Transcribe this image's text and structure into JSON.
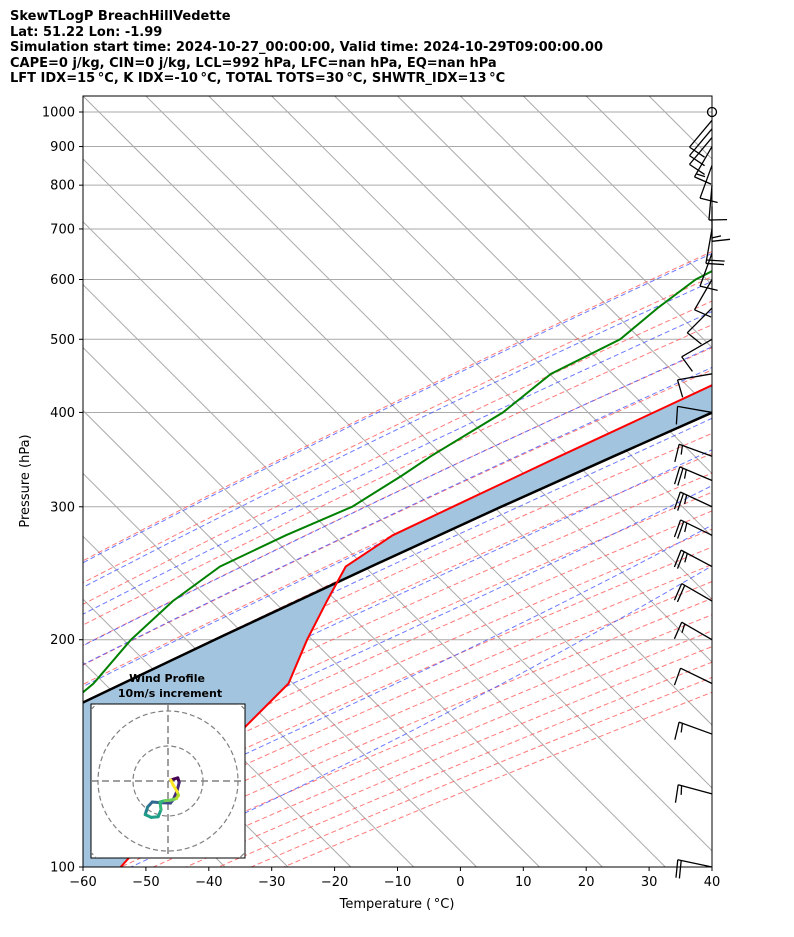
{
  "header": {
    "line1": "SkewTLogP BreachHillVedette",
    "line2": "Lat: 51.22   Lon: -1.99",
    "line3": "Simulation start time: 2024-10-27_00:00:00, Valid time: 2024-10-29T09:00:00.00",
    "line4": "CAPE=0 j/kg, CIN=0 j/kg, LCL=992 hPa, LFC=nan hPa, EQ=nan hPa",
    "line5": "LFT IDX=15 °C, K IDX=-10 °C, TOTAL TOTS=30 °C, SHWTR_IDX=13 °C"
  },
  "chart_data": {
    "type": "line",
    "chart_kind": "skew-t log-p",
    "xlabel": "Temperature ( °C)",
    "ylabel": "Pressure (hPa)",
    "xlim": [
      -60,
      40
    ],
    "ylim": [
      1050,
      100
    ],
    "y_scale": "log",
    "x_ticks": [
      "−60",
      "−50",
      "−40",
      "−30",
      "−20",
      "−10",
      "0",
      "10",
      "20",
      "30",
      "40"
    ],
    "x_tick_values": [
      -60,
      -50,
      -40,
      -30,
      -20,
      -10,
      0,
      10,
      20,
      30,
      40
    ],
    "y_tick_values": [
      100,
      200,
      300,
      400,
      500,
      600,
      700,
      800,
      900,
      1000
    ],
    "y_ticks": [
      "100",
      "200",
      "300",
      "400",
      "500",
      "600",
      "700",
      "800",
      "900",
      "1000"
    ],
    "grid": true,
    "colors": {
      "temperature": "#ff0000",
      "dewpoint": "#008000",
      "parcel": "#000000",
      "cape_fill": "#a2c4de",
      "dry_adiabat": "#ff4d4d",
      "moist_adiabat": "#3b4cff",
      "mixing_ratio": "#9e3bc2",
      "isotherm": "#aaaaaa"
    },
    "series": [
      {
        "key": "temperature",
        "pressure": [
          1000,
          975,
          950,
          925,
          900,
          875,
          850,
          825,
          800,
          775,
          750,
          700,
          650,
          600,
          550,
          500,
          450,
          400,
          350,
          300,
          275,
          250,
          225,
          200,
          175,
          150,
          140,
          125,
          110,
          100
        ],
        "values": [
          11.5,
          10.0,
          8.3,
          7.8,
          7.3,
          6.8,
          6.3,
          4.5,
          2.8,
          1.0,
          -0.8,
          -4.8,
          -9.5,
          -15.5,
          -21.5,
          -27.5,
          -34.5,
          -41.5,
          -49.5,
          -58.5,
          -63.5,
          -66.0,
          -63.5,
          -60.5,
          -56.5,
          -56.5,
          -55.5,
          -55.0,
          -54.5,
          -54.0
        ]
      },
      {
        "key": "dewpoint",
        "pressure": [
          1000,
          950,
          925,
          900,
          875,
          850,
          800,
          750,
          700,
          650,
          600,
          550,
          500,
          450,
          400,
          350,
          330,
          300,
          275,
          250,
          225,
          200,
          175,
          150,
          140,
          125,
          110,
          100
        ],
        "values": [
          10.0,
          7.0,
          6.0,
          4.0,
          -5.0,
          -14.5,
          -27.5,
          -38.0,
          -46.5,
          -52.0,
          -56.0,
          -57.5,
          -58.5,
          -64.0,
          -65.5,
          -70.0,
          -71.5,
          -74.5,
          -80.5,
          -86.0,
          -88.0,
          -88.5,
          -87.5,
          -89.0,
          -90.0,
          -87.0,
          -81.5,
          -78.0
        ]
      },
      {
        "key": "parcel",
        "pressure": [
          1000,
          992,
          950,
          900,
          850,
          800,
          750,
          700,
          650,
          600,
          550,
          500,
          450,
          400,
          350,
          300,
          250,
          200,
          150,
          100
        ],
        "values": [
          10.8,
          10.3,
          9.0,
          7.4,
          5.7,
          3.7,
          1.5,
          -1.2,
          -4.3,
          -8.2,
          -12.8,
          -18.2,
          -24.6,
          -32.2,
          -40.9,
          -50.8,
          -62.0,
          -75.2,
          -91.7,
          -114.3
        ]
      }
    ],
    "wind_barbs": {
      "pressure": [
        100,
        125,
        150,
        175,
        200,
        225,
        250,
        275,
        300,
        325,
        350,
        400,
        450,
        500,
        550,
        600,
        650,
        700,
        750,
        800,
        850,
        900,
        925,
        950,
        975,
        1000
      ],
      "speed_kt": [
        20,
        15,
        15,
        10,
        15,
        20,
        25,
        25,
        25,
        25,
        15,
        10,
        10,
        10,
        10,
        10,
        10,
        20,
        15,
        10,
        10,
        15,
        10,
        10,
        10,
        0
      ],
      "direction_deg": [
        282,
        285,
        290,
        296,
        300,
        300,
        298,
        296,
        295,
        293,
        290,
        280,
        260,
        240,
        225,
        210,
        200,
        190,
        180,
        185,
        200,
        210,
        220,
        220,
        220,
        0
      ]
    },
    "hodograph": {
      "title": "Wind Profile",
      "subtitle": "10m/s increment",
      "u": [
        0.8,
        1.8,
        2.8,
        3.2,
        2.6,
        1.5,
        0.7,
        -1.8,
        -4.5,
        -5.8,
        -6.2,
        -6.5,
        -4.8,
        -2.8,
        -2.0,
        -2.3,
        -0.8,
        0.7,
        2.4,
        3.0,
        2.6,
        1.5,
        0.8
      ],
      "v": [
        0.3,
        0.6,
        0.9,
        -0.4,
        -2.8,
        -5.3,
        -6.3,
        -6.2,
        -6.0,
        -7.4,
        -8.6,
        -9.6,
        -10.4,
        -10.2,
        -8.2,
        -6.0,
        -5.6,
        -5.5,
        -5.0,
        -4.1,
        -3.0,
        -1.2,
        0.3
      ]
    }
  }
}
